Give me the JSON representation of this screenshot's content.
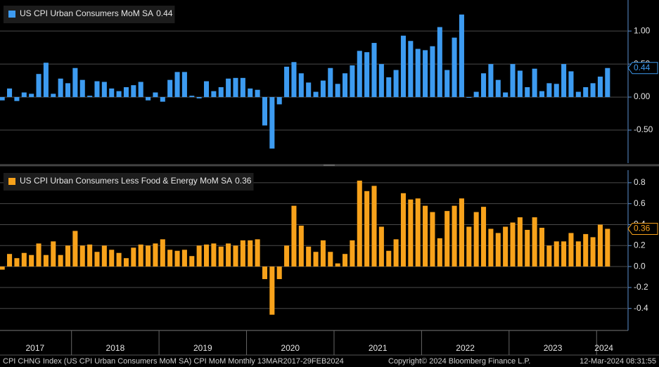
{
  "chart_data": [
    {
      "type": "bar",
      "series": [
        {
          "name": "US CPI Urban Consumers MoM SA",
          "color": "#3d9bf0",
          "values": [
            -0.05,
            0.13,
            -0.06,
            0.07,
            0.05,
            0.35,
            0.52,
            0.05,
            0.28,
            0.21,
            0.44,
            0.26,
            0.02,
            0.24,
            0.23,
            0.13,
            0.09,
            0.15,
            0.18,
            0.23,
            -0.05,
            0.07,
            -0.07,
            0.26,
            0.38,
            0.38,
            0.02,
            -0.02,
            0.24,
            0.09,
            0.15,
            0.28,
            0.29,
            0.29,
            0.13,
            0.11,
            -0.43,
            -0.78,
            -0.11,
            0.46,
            0.53,
            0.36,
            0.22,
            0.08,
            0.25,
            0.44,
            0.2,
            0.36,
            0.48,
            0.7,
            0.68,
            0.82,
            0.5,
            0.3,
            0.41,
            0.93,
            0.85,
            0.73,
            0.71,
            0.77,
            1.06,
            0.41,
            0.9,
            1.25,
            0.0,
            0.08,
            0.36,
            0.5,
            0.26,
            0.07,
            0.5,
            0.4,
            0.15,
            0.43,
            0.09,
            0.21,
            0.2,
            0.5,
            0.39,
            0.08,
            0.15,
            0.21,
            0.31,
            0.44
          ]
        }
      ],
      "ylim": [
        -1.0,
        1.47
      ],
      "yticks": [
        {
          "value": -0.5,
          "label": "-0.50"
        },
        {
          "value": 0,
          "label": "0.00"
        },
        {
          "value": 0.5,
          "label": "0.50"
        },
        {
          "value": 1,
          "label": "1.00"
        }
      ],
      "grid": true
    },
    {
      "type": "bar",
      "categories": [
        "2017",
        null,
        null,
        null,
        null,
        null,
        null,
        null,
        null,
        null,
        "2018",
        null,
        null,
        null,
        null,
        null,
        null,
        null,
        null,
        null,
        null,
        null,
        "2019",
        null,
        null,
        null,
        null,
        null,
        null,
        null,
        null,
        null,
        null,
        null,
        "2020",
        null,
        null,
        null,
        null,
        null,
        null,
        null,
        null,
        null,
        null,
        null,
        "2021",
        null,
        null,
        null,
        null,
        null,
        null,
        null,
        null,
        null,
        null,
        null,
        "2022",
        null,
        null,
        null,
        null,
        null,
        null,
        null,
        null,
        null,
        null,
        null,
        "2023",
        null,
        null,
        null,
        null,
        null,
        null,
        null,
        null,
        null,
        null,
        null,
        "2024",
        null
      ],
      "series": [
        {
          "name": "US CPI Urban Consumers Less Food & Energy MoM SA",
          "color": "#f7a21b",
          "values": [
            -0.03,
            0.12,
            0.08,
            0.13,
            0.11,
            0.22,
            0.11,
            0.24,
            0.11,
            0.2,
            0.34,
            0.2,
            0.21,
            0.14,
            0.2,
            0.16,
            0.13,
            0.08,
            0.18,
            0.21,
            0.2,
            0.22,
            0.26,
            0.16,
            0.15,
            0.16,
            0.1,
            0.2,
            0.21,
            0.22,
            0.19,
            0.22,
            0.2,
            0.25,
            0.25,
            0.26,
            -0.12,
            -0.46,
            -0.12,
            0.2,
            0.58,
            0.39,
            0.19,
            0.14,
            0.25,
            0.14,
            0.03,
            0.12,
            0.25,
            0.82,
            0.72,
            0.77,
            0.38,
            0.15,
            0.26,
            0.7,
            0.64,
            0.65,
            0.58,
            0.52,
            0.27,
            0.53,
            0.58,
            0.65,
            0.38,
            0.52,
            0.57,
            0.36,
            0.32,
            0.38,
            0.42,
            0.47,
            0.35,
            0.47,
            0.37,
            0.2,
            0.24,
            0.24,
            0.32,
            0.24,
            0.31,
            0.28,
            0.4,
            0.36
          ]
        }
      ],
      "ylim": [
        -0.61,
        0.92
      ],
      "yticks": [
        {
          "value": -0.4,
          "label": "-0.4"
        },
        {
          "value": -0.2,
          "label": "-0.2"
        },
        {
          "value": 0,
          "label": "0.0"
        },
        {
          "value": 0.2,
          "label": "0.2"
        },
        {
          "value": 0.4,
          "label": "0.4"
        },
        {
          "value": 0.6,
          "label": "0.6"
        },
        {
          "value": 0.8,
          "label": "0.8"
        }
      ],
      "grid": true
    }
  ],
  "footer": {
    "left": "CPI CHNG Index (US CPI Urban Consumers MoM SA) CPI MoM  Monthly 13MAR2017-29FEB2024",
    "center": "Copyright© 2024 Bloomberg Finance L.P.",
    "right": "12-Mar-2024 08:31:55"
  }
}
